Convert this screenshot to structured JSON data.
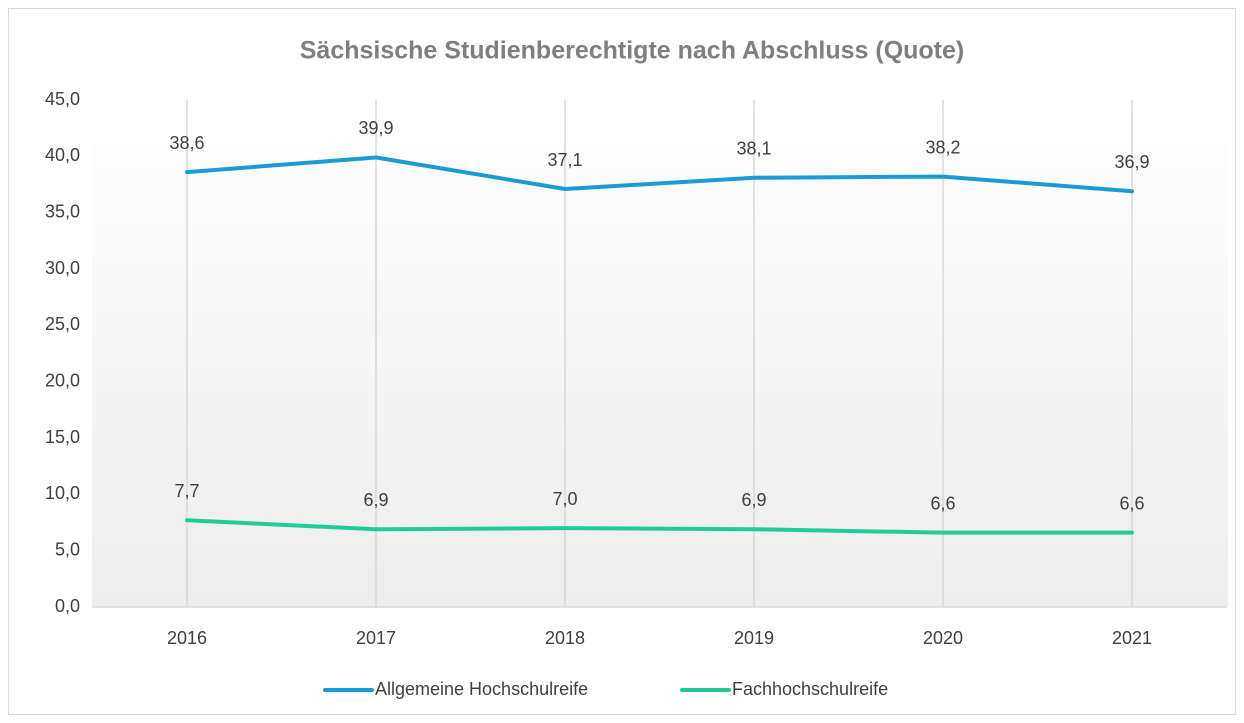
{
  "chart_data": {
    "type": "line",
    "title": "Sächsische Studienberechtigte nach Abschluss (Quote)",
    "categories": [
      "2016",
      "2017",
      "2018",
      "2019",
      "2020",
      "2021"
    ],
    "series": [
      {
        "name": "Allgemeine Hochschulreife",
        "color": "#1a9bd7",
        "values": [
          38.6,
          39.9,
          37.1,
          38.1,
          38.2,
          36.9
        ],
        "value_labels": [
          "38,6",
          "39,9",
          "37,1",
          "38,1",
          "38,2",
          "36,9"
        ]
      },
      {
        "name": "Fachhochschulreife",
        "color": "#1fcb9a",
        "values": [
          7.7,
          6.9,
          7.0,
          6.9,
          6.6,
          6.6
        ],
        "value_labels": [
          "7,7",
          "6,9",
          "7,0",
          "6,9",
          "6,6",
          "6,6"
        ]
      }
    ],
    "ylim": [
      0,
      45
    ],
    "yticks": [
      {
        "value": 0,
        "label": "0,0"
      },
      {
        "value": 5,
        "label": "5,0"
      },
      {
        "value": 10,
        "label": "10,0"
      },
      {
        "value": 15,
        "label": "15,0"
      },
      {
        "value": 20,
        "label": "20,0"
      },
      {
        "value": 25,
        "label": "25,0"
      },
      {
        "value": 30,
        "label": "30,0"
      },
      {
        "value": 35,
        "label": "35,0"
      },
      {
        "value": 40,
        "label": "40,0"
      },
      {
        "value": 45,
        "label": "45,0"
      }
    ],
    "legend": "bottom"
  }
}
